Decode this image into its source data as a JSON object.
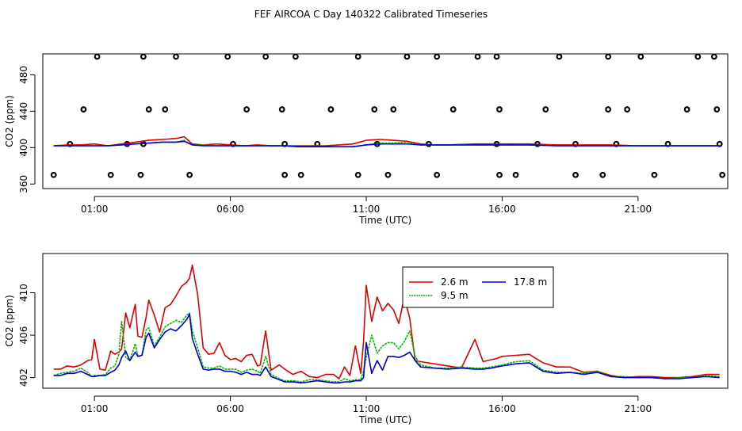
{
  "title": "FEF AIRCOA C  Day 140322  Calibrated Timeseries",
  "colors": {
    "s1": "#dd0000",
    "s2": "#00bb00",
    "s3": "#0000cc"
  },
  "chart_data": [
    {
      "type": "scatter",
      "xlabel": "Time (UTC)",
      "ylabel": "CO2 (ppm)",
      "xticks": [
        1,
        6,
        11,
        16,
        21
      ],
      "xtick_labels": [
        "01:00",
        "06:00",
        "11:00",
        "16:00",
        "21:00"
      ],
      "yticks": [
        360,
        400,
        440,
        480
      ],
      "ylim": [
        355,
        503
      ],
      "xlim": [
        -0.9,
        24.3
      ],
      "calibration_points": {
        "y500": [
          1.1,
          2.8,
          4.0,
          5.9,
          7.3,
          8.4,
          10.7,
          12.5,
          13.6,
          15.1,
          15.8,
          18.1,
          19.9,
          21.1,
          23.2,
          23.8
        ],
        "y442": [
          0.6,
          3.0,
          3.6,
          6.6,
          7.9,
          9.7,
          11.3,
          12.0,
          14.2,
          15.9,
          17.6,
          19.9,
          20.6,
          22.8,
          23.9
        ],
        "y404": [
          0.1,
          2.2,
          2.8,
          6.1,
          8.0,
          9.2,
          11.4,
          13.3,
          15.8,
          17.3,
          18.7,
          20.2,
          22.1,
          24.0
        ],
        "y370": [
          -0.5,
          1.6,
          2.7,
          4.5,
          8.0,
          8.6,
          10.7,
          11.8,
          13.6,
          15.9,
          16.5,
          18.7,
          19.7,
          21.6,
          24.1
        ]
      },
      "series": [
        {
          "name": "2.6 m",
          "x": [
            -0.5,
            0.0,
            0.5,
            1.0,
            1.5,
            2.0,
            2.5,
            3.0,
            3.5,
            4.0,
            4.3,
            4.6,
            5.0,
            5.5,
            6.0,
            6.5,
            7.0,
            7.5,
            8.0,
            8.5,
            9.0,
            9.5,
            10.0,
            10.5,
            11.0,
            11.5,
            12.0,
            12.5,
            13.0,
            13.5,
            14.0,
            15.0,
            16.0,
            17.0,
            18.0,
            19.0,
            20.0,
            21.0,
            22.0,
            23.0,
            24.0
          ],
          "values": [
            402,
            403,
            403,
            404,
            402,
            404,
            406,
            408,
            409,
            410,
            412,
            404,
            403,
            404,
            403,
            402,
            403,
            402,
            402,
            402,
            402,
            402,
            403,
            404,
            408,
            409,
            408,
            407,
            404,
            403,
            403,
            404,
            404,
            404,
            403,
            403,
            403,
            402,
            402,
            402,
            402
          ]
        },
        {
          "name": "9.5 m",
          "x": [
            -0.5,
            0.0,
            0.5,
            1.0,
            1.5,
            2.0,
            2.5,
            3.0,
            3.5,
            4.0,
            4.3,
            4.6,
            5.0,
            5.5,
            6.0,
            6.5,
            7.0,
            7.5,
            8.0,
            8.5,
            9.0,
            9.5,
            10.0,
            10.5,
            11.0,
            11.5,
            12.0,
            12.5,
            13.0,
            13.5,
            14.0,
            15.0,
            16.0,
            17.0,
            18.0,
            19.0,
            20.0,
            21.0,
            22.0,
            23.0,
            24.0
          ],
          "values": [
            402,
            402,
            402,
            402,
            402,
            403,
            404,
            405,
            406,
            406,
            408,
            403,
            403,
            402,
            402,
            402,
            402,
            402,
            402,
            401,
            401,
            401,
            401,
            401,
            403,
            405,
            405,
            406,
            403,
            403,
            403,
            403,
            403,
            403,
            402,
            402,
            402,
            402,
            402,
            402,
            402
          ]
        },
        {
          "name": "17.8 m",
          "x": [
            -0.5,
            0.0,
            0.5,
            1.0,
            1.5,
            2.0,
            2.5,
            3.0,
            3.5,
            4.0,
            4.3,
            4.6,
            5.0,
            5.5,
            6.0,
            6.5,
            7.0,
            7.5,
            8.0,
            8.5,
            9.0,
            9.5,
            10.0,
            10.5,
            11.0,
            11.5,
            12.0,
            12.5,
            13.0,
            13.5,
            14.0,
            15.0,
            16.0,
            17.0,
            18.0,
            19.0,
            20.0,
            21.0,
            22.0,
            23.0,
            24.0
          ],
          "values": [
            402,
            402,
            402,
            402,
            402,
            403,
            404,
            405,
            406,
            406,
            407,
            403,
            402,
            402,
            402,
            402,
            402,
            402,
            402,
            401,
            401,
            401,
            401,
            401,
            403,
            404,
            404,
            404,
            403,
            403,
            403,
            403,
            403,
            403,
            402,
            402,
            402,
            402,
            402,
            402,
            402
          ]
        }
      ]
    },
    {
      "type": "line",
      "xlabel": "Time (UTC)",
      "ylabel": "CO2 (ppm)",
      "xticks": [
        1,
        6,
        11,
        16,
        21
      ],
      "xtick_labels": [
        "01:00",
        "06:00",
        "11:00",
        "16:00",
        "21:00"
      ],
      "yticks": [
        402,
        406,
        410
      ],
      "ylim": [
        401.0,
        413.7
      ],
      "xlim": [
        -0.9,
        24.3
      ],
      "legend": "top-center",
      "series": [
        {
          "name": "2.6 m",
          "x": [
            -0.5,
            -0.25,
            0.0,
            0.25,
            0.5,
            0.75,
            0.9,
            1.0,
            1.2,
            1.4,
            1.6,
            1.75,
            1.9,
            2.0,
            2.15,
            2.3,
            2.5,
            2.6,
            2.75,
            2.9,
            3.0,
            3.2,
            3.4,
            3.6,
            3.8,
            4.0,
            4.2,
            4.4,
            4.5,
            4.6,
            4.8,
            5.0,
            5.2,
            5.4,
            5.6,
            5.8,
            6.0,
            6.2,
            6.4,
            6.6,
            6.8,
            7.0,
            7.1,
            7.3,
            7.5,
            7.8,
            8.0,
            8.3,
            8.6,
            8.9,
            9.2,
            9.5,
            9.8,
            10.0,
            10.2,
            10.4,
            10.6,
            10.8,
            10.9,
            11.0,
            11.2,
            11.4,
            11.6,
            11.8,
            12.0,
            12.2,
            12.4,
            12.6,
            12.8,
            13.0,
            13.5,
            14.0,
            14.5,
            15.0,
            15.3,
            15.6,
            15.8,
            16.0,
            16.5,
            17.0,
            17.5,
            18.0,
            18.5,
            19.0,
            19.5,
            20.0,
            20.5,
            21.0,
            21.5,
            22.0,
            22.5,
            23.0,
            23.5,
            24.0
          ],
          "values": [
            402.8,
            402.8,
            403.1,
            403.0,
            403.2,
            403.6,
            403.7,
            405.6,
            402.8,
            402.7,
            404.5,
            404.2,
            404.4,
            404.7,
            408.1,
            406.7,
            408.9,
            405.9,
            405.8,
            407.7,
            409.3,
            407.9,
            406.3,
            408.6,
            408.9,
            409.7,
            410.6,
            411.0,
            411.4,
            412.6,
            409.8,
            404.8,
            404.2,
            404.3,
            405.3,
            404.1,
            403.7,
            403.8,
            403.5,
            404.1,
            404.2,
            403.1,
            403.2,
            406.4,
            402.7,
            403.2,
            402.8,
            402.3,
            402.6,
            402.1,
            402.0,
            402.3,
            402.3,
            401.9,
            403.0,
            402.2,
            405.0,
            402.4,
            405.4,
            410.7,
            407.3,
            409.6,
            408.3,
            409.0,
            408.4,
            407.1,
            409.6,
            407.6,
            403.6,
            403.5,
            403.3,
            403.1,
            402.9,
            405.6,
            403.5,
            403.7,
            403.8,
            404.0,
            404.1,
            404.2,
            403.4,
            403.0,
            403.0,
            402.5,
            402.6,
            402.2,
            402.0,
            402.1,
            402.1,
            402.0,
            402.0,
            402.1,
            402.3,
            402.3
          ]
        },
        {
          "name": "9.5 m",
          "x": [
            -0.5,
            -0.25,
            0.0,
            0.25,
            0.5,
            0.75,
            0.9,
            1.0,
            1.2,
            1.4,
            1.6,
            1.75,
            1.9,
            2.0,
            2.15,
            2.3,
            2.5,
            2.6,
            2.75,
            2.9,
            3.0,
            3.2,
            3.4,
            3.6,
            3.8,
            4.0,
            4.2,
            4.4,
            4.5,
            4.6,
            4.8,
            5.0,
            5.2,
            5.4,
            5.6,
            5.8,
            6.0,
            6.2,
            6.4,
            6.6,
            6.8,
            7.0,
            7.1,
            7.3,
            7.5,
            7.8,
            8.0,
            8.3,
            8.6,
            8.9,
            9.2,
            9.5,
            9.8,
            10.0,
            10.2,
            10.4,
            10.6,
            10.8,
            10.9,
            11.0,
            11.2,
            11.4,
            11.6,
            11.8,
            12.0,
            12.2,
            12.4,
            12.6,
            12.8,
            13.0,
            13.5,
            14.0,
            14.5,
            15.0,
            15.3,
            15.6,
            15.8,
            16.0,
            16.5,
            17.0,
            17.5,
            18.0,
            18.5,
            19.0,
            19.5,
            20.0,
            20.5,
            21.0,
            21.5,
            22.0,
            22.5,
            23.0,
            23.5,
            24.0
          ],
          "values": [
            402.2,
            402.4,
            402.5,
            402.6,
            402.9,
            402.5,
            402.1,
            402.2,
            402.2,
            402.3,
            402.9,
            403.1,
            404.2,
            407.3,
            403.9,
            403.6,
            405.2,
            404.0,
            404.1,
            406.5,
            406.7,
            405.0,
            405.8,
            406.8,
            407.1,
            407.4,
            407.2,
            407.9,
            408.1,
            406.4,
            404.8,
            403.0,
            402.9,
            402.9,
            403.1,
            402.8,
            402.8,
            402.8,
            402.5,
            402.7,
            402.8,
            402.6,
            402.4,
            404.0,
            402.3,
            401.9,
            401.7,
            401.7,
            401.6,
            401.8,
            401.8,
            401.7,
            401.6,
            401.6,
            401.9,
            401.7,
            401.8,
            401.8,
            402.6,
            403.9,
            406.0,
            404.3,
            405.0,
            405.3,
            405.3,
            404.7,
            405.4,
            406.4,
            404.0,
            403.2,
            402.9,
            402.9,
            403.0,
            402.9,
            402.9,
            403.0,
            403.1,
            403.2,
            403.5,
            403.6,
            402.7,
            402.5,
            402.5,
            402.4,
            402.6,
            402.1,
            402.1,
            402.0,
            402.0,
            401.9,
            402.0,
            402.0,
            402.2,
            402.1
          ]
        },
        {
          "name": "17.8 m",
          "x": [
            -0.5,
            -0.25,
            0.0,
            0.25,
            0.5,
            0.75,
            0.9,
            1.0,
            1.2,
            1.4,
            1.6,
            1.75,
            1.9,
            2.0,
            2.15,
            2.3,
            2.5,
            2.6,
            2.75,
            2.9,
            3.0,
            3.2,
            3.4,
            3.6,
            3.8,
            4.0,
            4.2,
            4.4,
            4.5,
            4.6,
            4.8,
            5.0,
            5.2,
            5.4,
            5.6,
            5.8,
            6.0,
            6.2,
            6.4,
            6.6,
            6.8,
            7.0,
            7.1,
            7.3,
            7.5,
            7.8,
            8.0,
            8.3,
            8.6,
            8.9,
            9.2,
            9.5,
            9.8,
            10.0,
            10.2,
            10.4,
            10.6,
            10.8,
            10.9,
            11.0,
            11.2,
            11.4,
            11.6,
            11.8,
            12.0,
            12.2,
            12.4,
            12.6,
            12.8,
            13.0,
            13.5,
            14.0,
            14.5,
            15.0,
            15.3,
            15.6,
            15.8,
            16.0,
            16.5,
            17.0,
            17.5,
            18.0,
            18.5,
            19.0,
            19.5,
            20.0,
            20.5,
            21.0,
            21.5,
            22.0,
            22.5,
            23.0,
            23.5,
            24.0
          ],
          "values": [
            402.2,
            402.2,
            402.4,
            402.4,
            402.6,
            402.3,
            402.1,
            402.1,
            402.2,
            402.2,
            402.5,
            402.7,
            403.2,
            403.9,
            404.5,
            403.6,
            404.4,
            404.0,
            404.1,
            405.8,
            406.2,
            404.8,
            405.6,
            406.3,
            406.6,
            406.4,
            406.9,
            407.5,
            408.0,
            405.7,
            404.2,
            402.8,
            402.7,
            402.8,
            402.8,
            402.6,
            402.6,
            402.5,
            402.3,
            402.5,
            402.3,
            402.3,
            402.2,
            403.0,
            402.1,
            401.8,
            401.6,
            401.6,
            401.5,
            401.6,
            401.7,
            401.6,
            401.5,
            401.5,
            401.6,
            401.6,
            401.7,
            401.7,
            402.0,
            405.3,
            402.4,
            403.6,
            402.7,
            404.0,
            404.0,
            403.9,
            404.1,
            404.4,
            403.6,
            403.0,
            402.9,
            402.8,
            402.9,
            402.8,
            402.8,
            402.9,
            403.0,
            403.1,
            403.3,
            403.4,
            402.6,
            402.4,
            402.5,
            402.3,
            402.5,
            402.1,
            402.0,
            402.0,
            402.0,
            401.9,
            401.9,
            402.0,
            402.1,
            402.0
          ]
        }
      ]
    }
  ]
}
